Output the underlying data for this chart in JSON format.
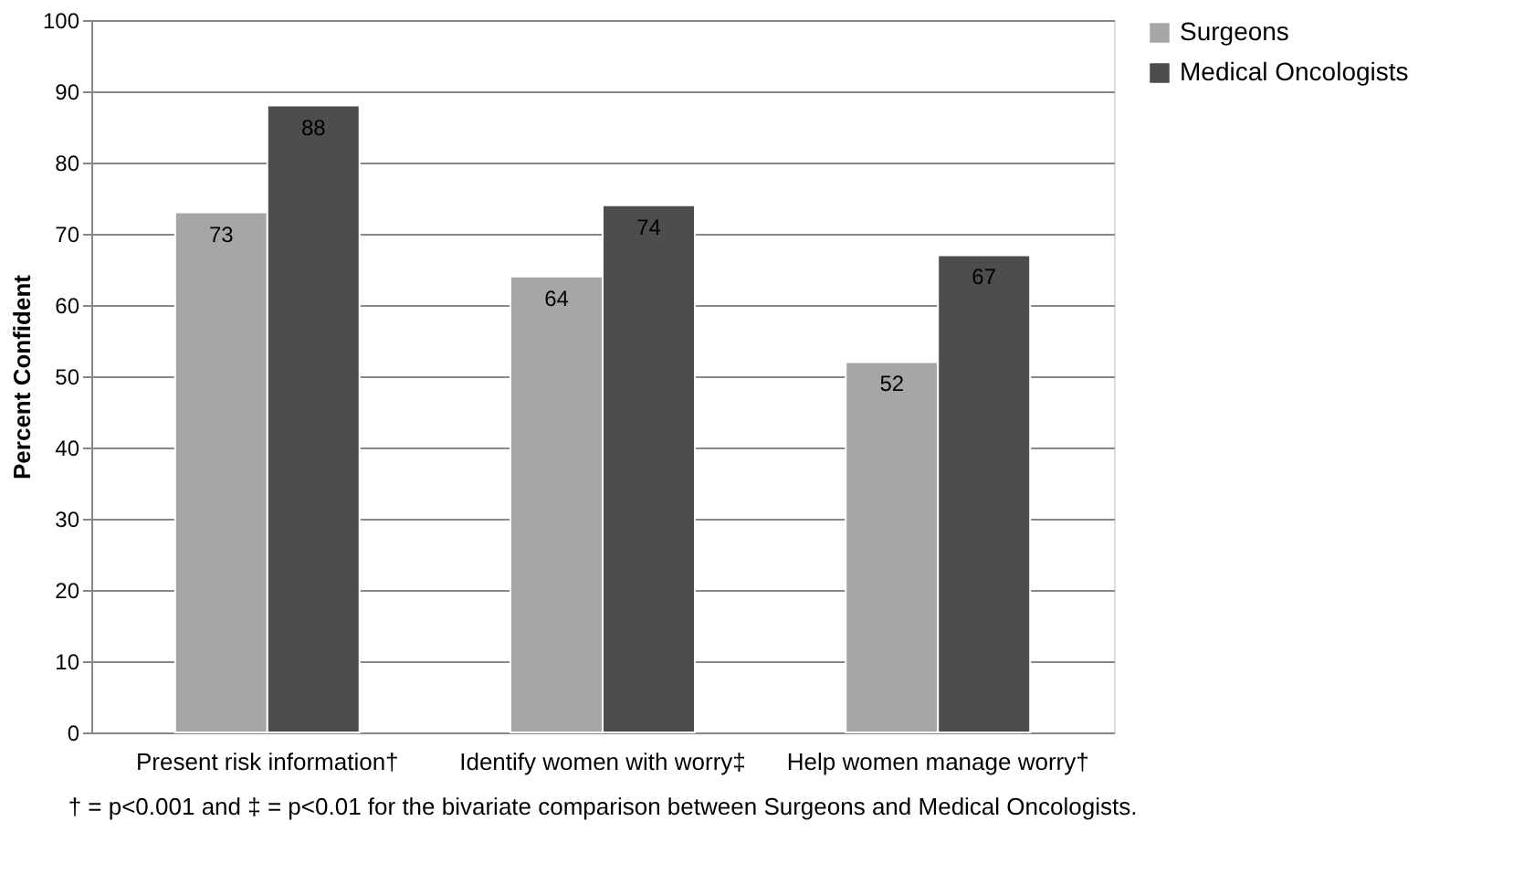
{
  "chart_data": {
    "type": "bar",
    "ylabel": "Percent Confident",
    "categories": [
      "Present risk information†",
      "Identify women with worry‡",
      "Help women manage worry†"
    ],
    "series": [
      {
        "name": "Surgeons",
        "color": "#a6a6a6",
        "values": [
          73,
          64,
          52
        ]
      },
      {
        "name": "Medical Oncologists",
        "color": "#4d4d4d",
        "values": [
          88,
          74,
          67
        ]
      }
    ],
    "ylim": [
      0,
      100
    ],
    "yticks": [
      0,
      10,
      20,
      30,
      40,
      50,
      60,
      70,
      80,
      90,
      100
    ],
    "grid": "y",
    "legend": "right",
    "data_labels": true,
    "annotations": [
      "† = p<0.001 and ‡ = p<0.01 for the bivariate comparison between Surgeons and Medical Oncologists."
    ]
  }
}
